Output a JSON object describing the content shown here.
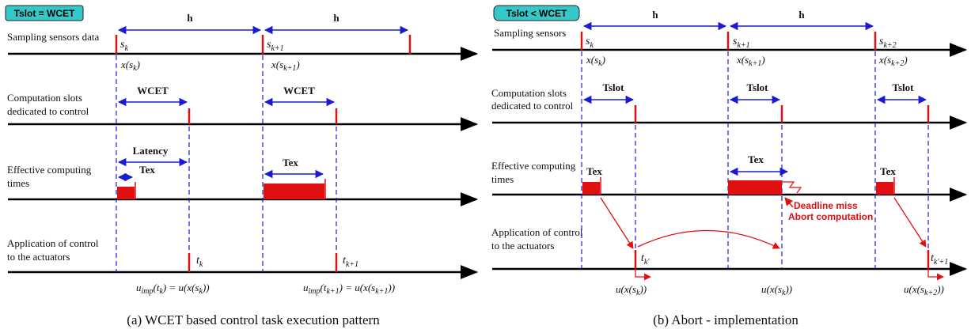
{
  "left": {
    "badge": "Tslot = WCET",
    "rows": {
      "sampling": "Sampling sensors data",
      "slots_1": "Computation slots",
      "slots_2": "dedicated to control",
      "effective_1": "Effective computing",
      "effective_2": "times",
      "application_1": "Application of control",
      "application_2": "to the actuators"
    },
    "period_label": "h",
    "wcet_label": "WCET",
    "latency_label": "Latency",
    "tex_label": "Tex",
    "samples": [
      {
        "s": "s",
        "sub": "k",
        "x": "x(s",
        "xsub": "k",
        "xend": ")"
      },
      {
        "s": "s",
        "sub": "k+1",
        "x": "x(s",
        "xsub": "k+1",
        "xend": ")"
      }
    ],
    "actuation": [
      {
        "t": "t",
        "sub": "k",
        "u": "u",
        "usub": "imp",
        "eq1": "(t",
        "eqsub": "k",
        "eq2": ") = u(x(s",
        "eqsub2": "k",
        "eq3": "))"
      },
      {
        "t": "t",
        "sub": "k+1",
        "u": "u",
        "usub": "imp",
        "eq1": "(t",
        "eqsub": "k+1",
        "eq2": ") = u(x(s",
        "eqsub2": "k+1",
        "eq3": "))"
      }
    ],
    "caption": "(a)  WCET based control task execution pattern"
  },
  "right": {
    "badge": "Tslot < WCET",
    "rows": {
      "sampling": "Sampling sensors",
      "slots_1": "Computation slots",
      "slots_2": "dedicated to control",
      "effective_1": "Effective computing",
      "effective_2": "times",
      "application_1": "Application of control",
      "application_2": "to the actuators"
    },
    "period_label": "h",
    "tslot_label": "Tslot",
    "tex_label": "Tex",
    "deadline_1": "Deadline miss",
    "deadline_2": "Abort computation",
    "samples": [
      {
        "s": "s",
        "sub": "k",
        "x": "x(s",
        "xsub": "k",
        "xend": ")"
      },
      {
        "s": "s",
        "sub": "k+1",
        "x": "x(s",
        "xsub": "k+1",
        "xend": ")"
      },
      {
        "s": "s",
        "sub": "k+2",
        "x": "x(s",
        "xsub": "k+2",
        "xend": ")"
      }
    ],
    "actuation": [
      {
        "t": "t",
        "sub": "k'",
        "u": "u(x(s",
        "usub": "k",
        "uend": "))"
      },
      {
        "u": "u(x(s",
        "usub": "k",
        "uend": "))"
      },
      {
        "t": "t",
        "sub": "k'+1",
        "u": "u(x(s",
        "usub": "k+2",
        "uend": "))"
      }
    ],
    "caption": "(b)  Abort - implementation"
  },
  "colors": {
    "accent_red": "#e01010",
    "arrow_blue": "#1a1ad0",
    "badge_fill": "#36c8c8"
  }
}
